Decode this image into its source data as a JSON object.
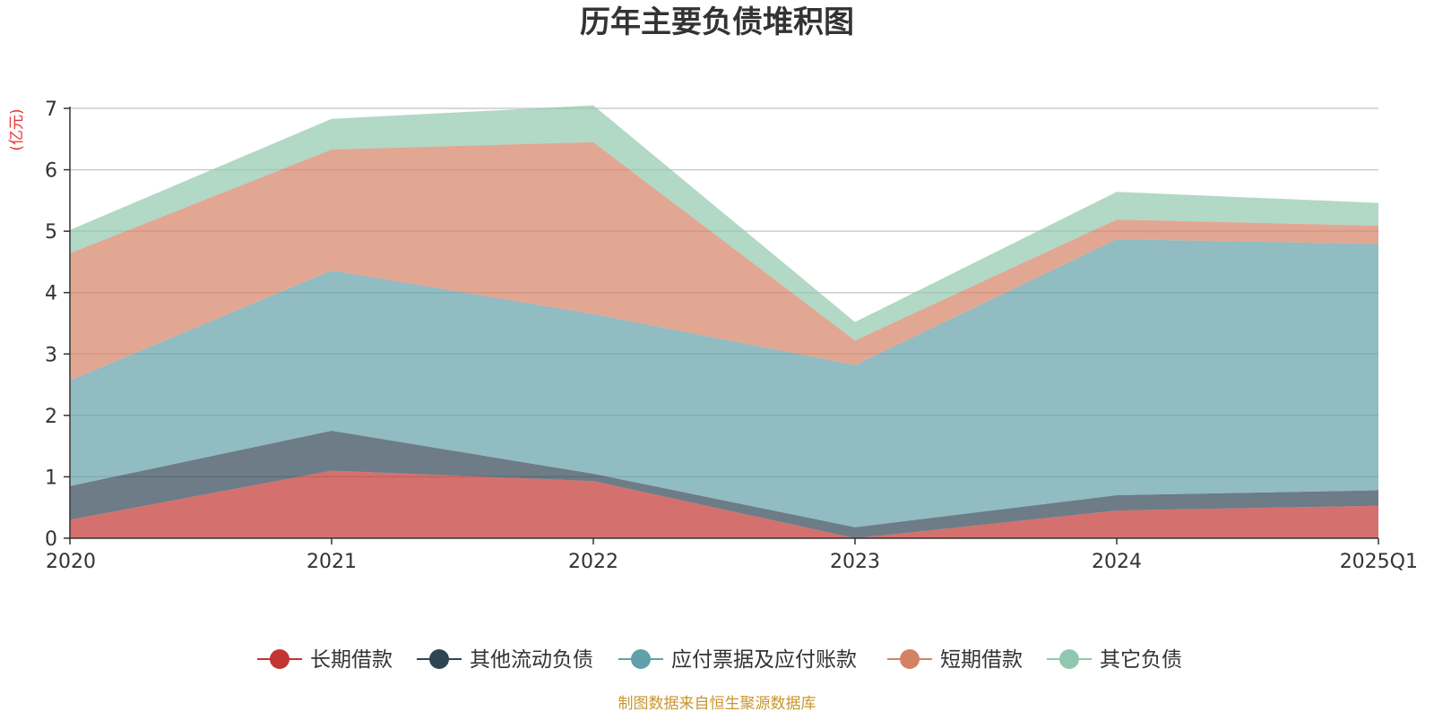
{
  "chart_data": {
    "type": "area",
    "stacked": true,
    "title": "历年主要负债堆积图",
    "unit_label": "(亿元)",
    "categories": [
      "2020",
      "2021",
      "2022",
      "2023",
      "2024",
      "2025Q1"
    ],
    "ylim": [
      0,
      7
    ],
    "yticks": [
      "0",
      "1",
      "2",
      "3",
      "4",
      "5",
      "6",
      "7"
    ],
    "grid": true,
    "legend_position": "bottom",
    "series": [
      {
        "name": "长期借款",
        "color": "#c23531",
        "values": [
          0.3,
          1.1,
          0.93,
          0.0,
          0.45,
          0.53
        ]
      },
      {
        "name": "其他流动负债",
        "color": "#2f4554",
        "values": [
          0.55,
          0.65,
          0.12,
          0.18,
          0.25,
          0.25
        ]
      },
      {
        "name": "应付票据及应付账款",
        "color": "#61a0a8",
        "values": [
          1.72,
          2.61,
          2.6,
          2.64,
          4.17,
          4.01
        ]
      },
      {
        "name": "短期借款",
        "color": "#d48265",
        "values": [
          2.07,
          1.97,
          2.8,
          0.4,
          0.32,
          0.3
        ]
      },
      {
        "name": "其它负债",
        "color": "#91c7ae",
        "values": [
          0.38,
          0.5,
          0.6,
          0.3,
          0.45,
          0.37
        ]
      }
    ],
    "source_note": "制图数据来自恒生聚源数据库",
    "source_color": "#c8962f",
    "unit_color": "#e63232"
  }
}
